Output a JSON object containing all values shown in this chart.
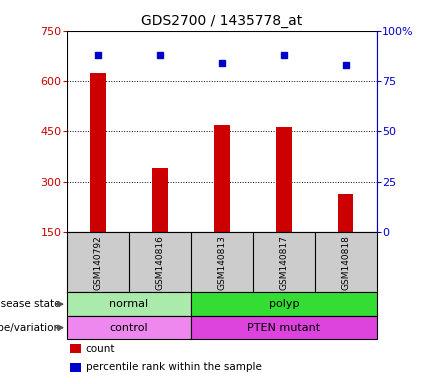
{
  "title": "GDS2700 / 1435778_at",
  "samples": [
    "GSM140792",
    "GSM140816",
    "GSM140813",
    "GSM140817",
    "GSM140818"
  ],
  "counts": [
    625,
    340,
    470,
    462,
    262
  ],
  "percentile_ranks": [
    88,
    88,
    84,
    88,
    83
  ],
  "bar_color": "#cc0000",
  "dot_color": "#0000cc",
  "left_ylim": [
    150,
    750
  ],
  "left_yticks": [
    150,
    300,
    450,
    600,
    750
  ],
  "right_ylim": [
    0,
    100
  ],
  "right_yticks": [
    0,
    25,
    50,
    75,
    100
  ],
  "right_yticklabels": [
    "0",
    "25",
    "50",
    "75",
    "100%"
  ],
  "disease_state": [
    {
      "label": "normal",
      "cols": [
        0,
        1
      ],
      "color": "#aaeaaa"
    },
    {
      "label": "polyp",
      "cols": [
        2,
        3,
        4
      ],
      "color": "#33dd33"
    }
  ],
  "genotype": [
    {
      "label": "control",
      "cols": [
        0,
        1
      ],
      "color": "#ee88ee"
    },
    {
      "label": "PTEN mutant",
      "cols": [
        2,
        3,
        4
      ],
      "color": "#dd44dd"
    }
  ],
  "legend_items": [
    {
      "label": "count",
      "color": "#cc0000"
    },
    {
      "label": "percentile rank within the sample",
      "color": "#0000cc"
    }
  ],
  "left_label_color": "#cc0000",
  "right_label_color": "#0000cc",
  "disease_label": "disease state",
  "genotype_label": "genotype/variation",
  "grid_color": "#000000",
  "plot_bg_color": "#ffffff",
  "names_bg_color": "#cccccc",
  "background_color": "#ffffff",
  "bar_width": 0.25
}
